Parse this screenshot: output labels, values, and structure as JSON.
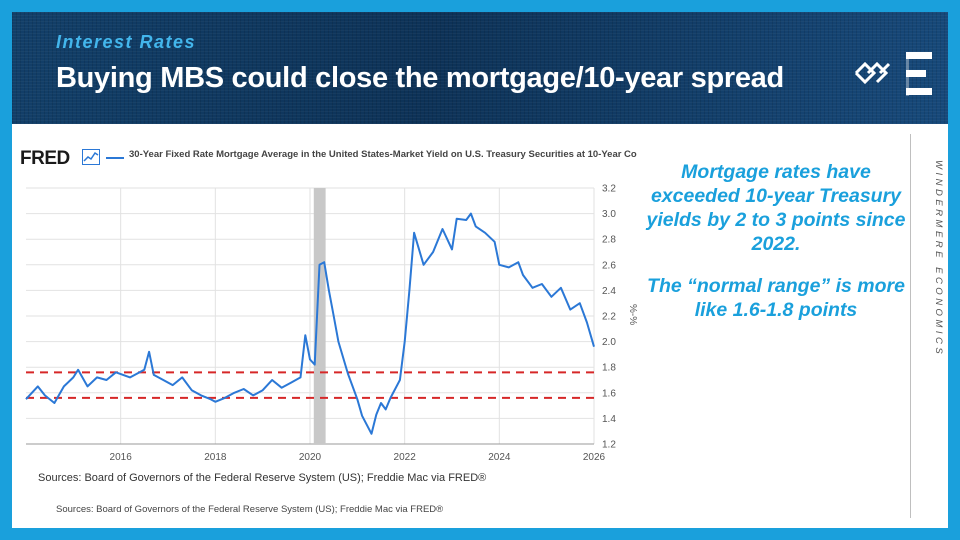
{
  "header": {
    "kicker": "Interest Rates",
    "title": "Buying MBS could close the mortgage/10-year spread"
  },
  "fred": {
    "logo_text": "FRED",
    "legend_label": "30-Year Fixed Rate Mortgage Average in the United States-Market Yield on U.S. Treasury Securities at 10-Year Co",
    "sources": "Sources: Board of Governors of the Federal Reserve System (US); Freddie Mac via FRED®"
  },
  "sidebar": {
    "point1": "Mortgage rates have exceeded 10-year Treasury yields by 2 to 3 points since 2022.",
    "point2": "The “normal range” is more like 1.6-1.8 points",
    "brand_vertical": "WINDERMERE ECONOMICS"
  },
  "footer": {
    "sources": "Sources: Board of Governors of the Federal Reserve System (US); Freddie Mac via FRED®"
  },
  "colors": {
    "accent": "#1aa0dc",
    "header_bg": "#0f3e67",
    "series": "#2b78d6",
    "reference_line": "#d62728",
    "recession_band": "#c8c8c8"
  },
  "chart_data": {
    "type": "line",
    "title": "",
    "xlabel": "",
    "ylabel": "%-%",
    "xlim": [
      2014.0,
      2026.0
    ],
    "ylim": [
      1.2,
      3.2
    ],
    "x_ticks": [
      "2016",
      "2018",
      "2020",
      "2022",
      "2024",
      "2026"
    ],
    "y_ticks": [
      "1.2",
      "1.4",
      "1.6",
      "1.8",
      "2.0",
      "2.2",
      "2.4",
      "2.6",
      "2.8",
      "3.0",
      "3.2"
    ],
    "grid": true,
    "shaded_period": [
      2020.08,
      2020.33
    ],
    "reference_lines": [
      1.76,
      1.56
    ],
    "series": [
      {
        "x": [
          2014.0,
          2014.25,
          2014.4,
          2014.6,
          2014.8,
          2015.0,
          2015.1,
          2015.3,
          2015.5,
          2015.7,
          2015.9,
          2016.2,
          2016.5,
          2016.6,
          2016.7,
          2016.9,
          2017.1,
          2017.3,
          2017.5,
          2017.7,
          2017.9,
          2018.0,
          2018.2,
          2018.4,
          2018.6,
          2018.8,
          2019.0,
          2019.2,
          2019.4,
          2019.6,
          2019.8,
          2019.9,
          2020.0,
          2020.1,
          2020.2,
          2020.3,
          2020.4,
          2020.5,
          2020.6,
          2020.8,
          2021.0,
          2021.1,
          2021.2,
          2021.3,
          2021.4,
          2021.5,
          2021.6,
          2021.7,
          2021.9,
          2022.0,
          2022.1,
          2022.2,
          2022.4,
          2022.6,
          2022.8,
          2023.0,
          2023.1,
          2023.3,
          2023.4,
          2023.5,
          2023.7,
          2023.9,
          2024.0,
          2024.2,
          2024.4,
          2024.5,
          2024.7,
          2024.9,
          2025.1,
          2025.3,
          2025.5,
          2025.7,
          2025.85,
          2026.0
        ],
        "values": [
          1.55,
          1.65,
          1.58,
          1.52,
          1.65,
          1.72,
          1.78,
          1.65,
          1.72,
          1.7,
          1.76,
          1.72,
          1.78,
          1.92,
          1.74,
          1.7,
          1.66,
          1.72,
          1.62,
          1.58,
          1.55,
          1.53,
          1.56,
          1.6,
          1.63,
          1.58,
          1.62,
          1.7,
          1.64,
          1.68,
          1.72,
          2.05,
          1.86,
          1.82,
          2.6,
          2.62,
          2.4,
          2.2,
          2.0,
          1.75,
          1.55,
          1.42,
          1.35,
          1.28,
          1.43,
          1.52,
          1.47,
          1.56,
          1.7,
          2.0,
          2.4,
          2.85,
          2.6,
          2.7,
          2.88,
          2.72,
          2.96,
          2.95,
          3.0,
          2.9,
          2.85,
          2.78,
          2.6,
          2.58,
          2.62,
          2.52,
          2.42,
          2.45,
          2.35,
          2.42,
          2.25,
          2.3,
          2.15,
          1.96
        ]
      }
    ]
  }
}
